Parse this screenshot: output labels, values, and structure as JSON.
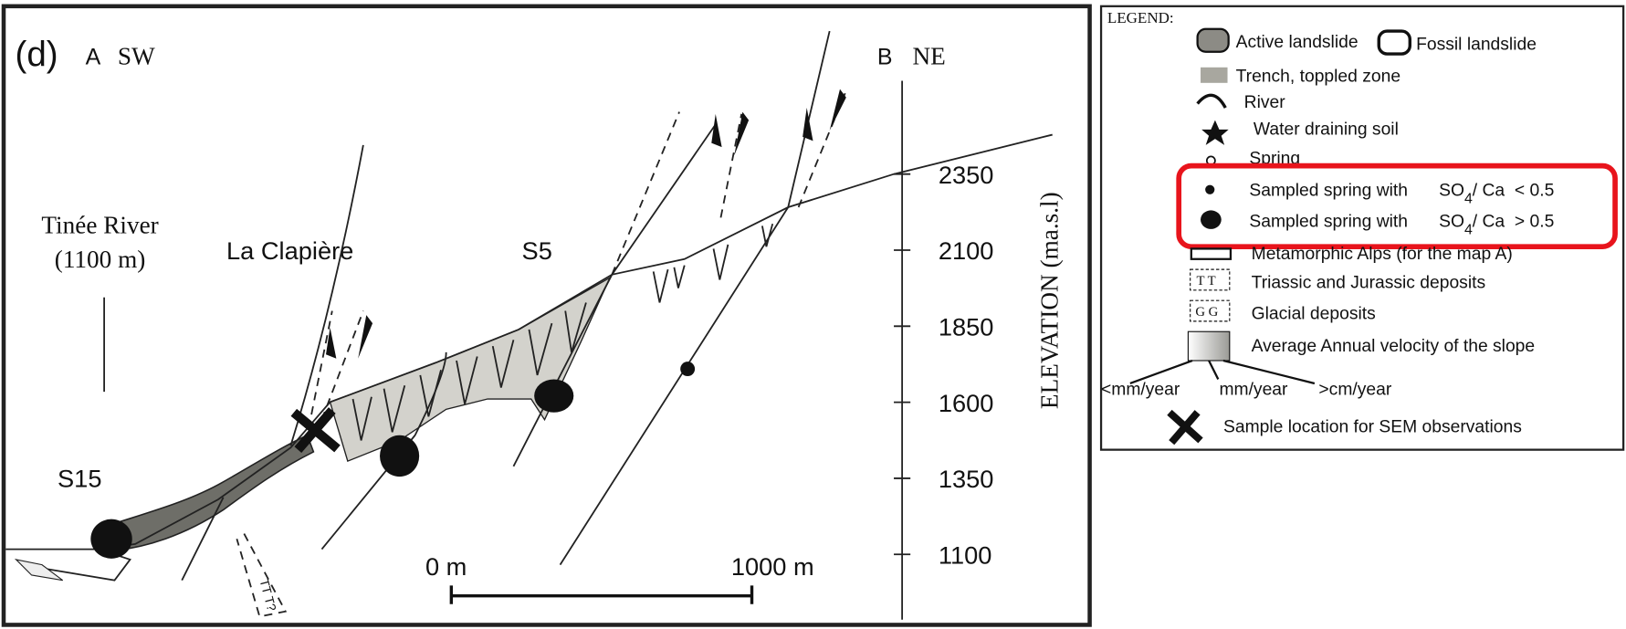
{
  "panel": {
    "label": "(d)",
    "start_point": "A",
    "start_direction": "SW",
    "end_point": "B",
    "end_direction": "NE"
  },
  "labels": {
    "river_name": "Tinée River",
    "river_elevation": "(1100 m)",
    "landslide": "La Clapière",
    "spring_s5": "S5",
    "spring_s15": "S15",
    "deposit_marker": "TT T?"
  },
  "elevation_axis": {
    "title": "ELEVATION (ma.s.l)",
    "ticks": [
      2350,
      2100,
      1850,
      1600,
      1350,
      1100
    ]
  },
  "scale_bar": {
    "start": "0 m",
    "end": "1000 m"
  },
  "legend": {
    "title": "LEGEND:",
    "active_landslide": "Active landslide",
    "fossil_landslide": "Fossil landslide",
    "trench": "Trench, toppled zone",
    "river": "River",
    "water_draining": "Water draining soil",
    "spring": "Spring",
    "sampled_low": {
      "label": "Sampled spring with",
      "ratio_prefix": "SO",
      "ratio_subscript": "4",
      "ratio_suffix": "/ Ca  < 0.5"
    },
    "sampled_high": {
      "label": "Sampled spring with",
      "ratio_prefix": "SO",
      "ratio_subscript": "4",
      "ratio_suffix": "/ Ca  > 0.5"
    },
    "metamorphic": "Metamorphic Alps (for the map A)",
    "triassic": {
      "symbol": "T T",
      "label": "Triassic and Jurassic deposits"
    },
    "glacial": {
      "symbol": "G G",
      "label": "Glacial deposits"
    },
    "velocity": {
      "label": "Average Annual velocity of the slope",
      "low": "<mm/year",
      "mid": "mm/year",
      "high": ">cm/year"
    },
    "sem": "Sample location for SEM observations"
  }
}
